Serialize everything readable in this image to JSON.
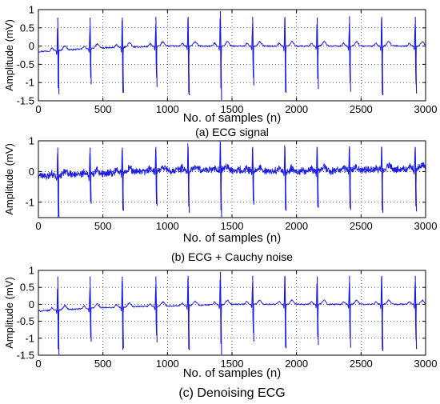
{
  "chart_data": [
    {
      "type": "line",
      "caption": "(a) ECG signal",
      "xlabel": "No. of samples (n)",
      "ylabel": "Amplitude (mV)",
      "xlim": [
        0,
        3000
      ],
      "ylim": [
        -1.5,
        1
      ],
      "xticks": [
        "0",
        "500",
        "1000",
        "1500",
        "2000",
        "2500",
        "3000"
      ],
      "yticks": [
        "1",
        "0.5",
        "0",
        "-0.5",
        "-1",
        "-1.5"
      ],
      "grid": true,
      "line_color": "#1a1ae6",
      "noise_level": "low",
      "baseline": [
        [
          0,
          -0.15
        ],
        [
          500,
          -0.05
        ],
        [
          1000,
          0.0
        ],
        [
          1500,
          0.0
        ],
        [
          2000,
          0.0
        ],
        [
          2500,
          0.0
        ],
        [
          3000,
          0.0
        ]
      ],
      "beats": [
        {
          "x": 150,
          "peak": 0.78,
          "trough": -1.32
        },
        {
          "x": 400,
          "peak": 0.78,
          "trough": -1.05
        },
        {
          "x": 650,
          "peak": 0.78,
          "trough": -1.28
        },
        {
          "x": 910,
          "peak": 0.8,
          "trough": -1.12
        },
        {
          "x": 1160,
          "peak": 0.8,
          "trough": -1.35
        },
        {
          "x": 1410,
          "peak": 0.96,
          "trough": -1.48
        },
        {
          "x": 1660,
          "peak": 0.8,
          "trough": -1.08
        },
        {
          "x": 1910,
          "peak": 0.8,
          "trough": -1.28
        },
        {
          "x": 2160,
          "peak": 0.78,
          "trough": -1.18
        },
        {
          "x": 2410,
          "peak": 0.82,
          "trough": -1.25
        },
        {
          "x": 2660,
          "peak": 0.8,
          "trough": -1.35
        },
        {
          "x": 2920,
          "peak": 0.8,
          "trough": -1.3
        }
      ]
    },
    {
      "type": "line",
      "caption": "(b) ECG + Cauchy noise",
      "xlabel": "No. of samples (n)",
      "ylabel": "Amplitude (mV)",
      "xlim": [
        0,
        3000
      ],
      "ylim": [
        -1.5,
        1
      ],
      "xticks": [
        "0",
        "500",
        "1000",
        "1500",
        "2000",
        "2500",
        "3000"
      ],
      "yticks": [
        "1",
        "0",
        "-1"
      ],
      "grid": true,
      "line_color": "#1a1ae6",
      "noise_level": "high",
      "baseline": [
        [
          0,
          -0.15
        ],
        [
          500,
          -0.05
        ],
        [
          1000,
          0.05
        ],
        [
          1500,
          0.05
        ],
        [
          2000,
          0.0
        ],
        [
          2500,
          0.05
        ],
        [
          3000,
          0.1
        ]
      ],
      "beats": [
        {
          "x": 150,
          "peak": 0.78,
          "trough": -1.48
        },
        {
          "x": 400,
          "peak": 0.78,
          "trough": -1.05
        },
        {
          "x": 650,
          "peak": 0.78,
          "trough": -1.28
        },
        {
          "x": 910,
          "peak": 0.8,
          "trough": -1.12
        },
        {
          "x": 1160,
          "peak": 0.8,
          "trough": -1.35
        },
        {
          "x": 1410,
          "peak": 0.96,
          "trough": -1.48
        },
        {
          "x": 1660,
          "peak": 0.8,
          "trough": -1.08
        },
        {
          "x": 1910,
          "peak": 0.8,
          "trough": -1.28
        },
        {
          "x": 2160,
          "peak": 0.78,
          "trough": -1.18
        },
        {
          "x": 2410,
          "peak": 0.82,
          "trough": -1.25
        },
        {
          "x": 2660,
          "peak": 0.8,
          "trough": -1.35
        },
        {
          "x": 2920,
          "peak": 0.8,
          "trough": -1.3
        }
      ]
    },
    {
      "type": "line",
      "caption": "(c) Denoising ECG",
      "xlabel": "No. of samples (n)",
      "ylabel": "Amplitude (mV)",
      "xlim": [
        0,
        3000
      ],
      "ylim": [
        -1.5,
        1
      ],
      "xticks": [
        "0",
        "500",
        "1000",
        "1500",
        "2000",
        "2500",
        "3000"
      ],
      "yticks": [
        "1",
        "0.5",
        "0",
        "-0.5",
        "-1",
        "-1.5"
      ],
      "grid": true,
      "line_color": "#1a1ae6",
      "noise_level": "low",
      "baseline": [
        [
          0,
          -0.2
        ],
        [
          500,
          -0.1
        ],
        [
          1000,
          -0.05
        ],
        [
          1500,
          0.0
        ],
        [
          2000,
          0.0
        ],
        [
          2500,
          0.0
        ],
        [
          3000,
          0.0
        ]
      ],
      "beats": [
        {
          "x": 150,
          "peak": 0.82,
          "trough": -1.48
        },
        {
          "x": 400,
          "peak": 0.82,
          "trough": -1.1
        },
        {
          "x": 650,
          "peak": 0.82,
          "trough": -1.3
        },
        {
          "x": 910,
          "peak": 0.82,
          "trough": -1.12
        },
        {
          "x": 1160,
          "peak": 0.84,
          "trough": -1.35
        },
        {
          "x": 1410,
          "peak": 0.96,
          "trough": -1.48
        },
        {
          "x": 1660,
          "peak": 0.84,
          "trough": -1.1
        },
        {
          "x": 1910,
          "peak": 0.84,
          "trough": -1.3
        },
        {
          "x": 2160,
          "peak": 0.82,
          "trough": -1.2
        },
        {
          "x": 2410,
          "peak": 0.84,
          "trough": -1.28
        },
        {
          "x": 2660,
          "peak": 0.84,
          "trough": -1.38
        },
        {
          "x": 2920,
          "peak": 0.84,
          "trough": -1.32
        }
      ]
    }
  ]
}
